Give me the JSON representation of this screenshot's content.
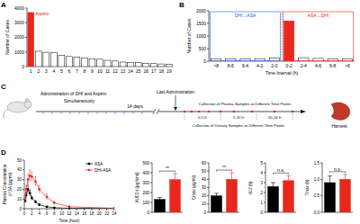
{
  "panel_labels": [
    "A",
    "B",
    "C",
    "D"
  ],
  "chart_data": [
    {
      "type": "bar",
      "ylabel": "Number of Cases",
      "categories": [
        1,
        2,
        3,
        4,
        5,
        6,
        7,
        8,
        9,
        10,
        11,
        12,
        13,
        14,
        15,
        16,
        17,
        18,
        19
      ],
      "values": [
        3700,
        1050,
        980,
        950,
        760,
        690,
        640,
        590,
        540,
        500,
        430,
        380,
        310,
        290,
        270,
        230,
        200,
        180,
        160
      ],
      "colors": [
        "#e8281e",
        "#ffffff",
        "#ffffff",
        "#ffffff",
        "#ffffff",
        "#ffffff",
        "#ffffff",
        "#ffffff",
        "#ffffff",
        "#ffffff",
        "#ffffff",
        "#ffffff",
        "#ffffff",
        "#ffffff",
        "#ffffff",
        "#ffffff",
        "#ffffff",
        "#ffffff",
        "#ffffff"
      ],
      "ylim": [
        0,
        4000
      ],
      "yticks": [
        0,
        1000,
        2000,
        3000,
        4000
      ],
      "annotations": [
        "Aspirin"
      ]
    },
    {
      "type": "bar",
      "ylabel": "Number of Cases",
      "xlabel": "Time Interval (h)",
      "categories": [
        ">8",
        "8-6",
        "6-4",
        "4-2",
        "2-0",
        "0-2",
        "2-4",
        "4-6",
        "6-8",
        ">8"
      ],
      "values": [
        100,
        90,
        90,
        100,
        130,
        1600,
        140,
        110,
        90,
        100
      ],
      "colors": [
        "#ffffff",
        "#ffffff",
        "#ffffff",
        "#ffffff",
        "#ffffff",
        "#e8281e",
        "#ffffff",
        "#ffffff",
        "#ffffff",
        "#ffffff"
      ],
      "ylim": [
        0,
        2000
      ],
      "yticks": [
        0,
        500,
        1000,
        1500,
        2000
      ],
      "annotations": [
        "DHI→ASA",
        "ASA→DHI"
      ]
    },
    {
      "type": "line",
      "ylabel": [
        "Plasma Concentration",
        "of SA (μg/ml)"
      ],
      "xlabel": "Time (hour)",
      "x": [
        0.25,
        0.5,
        1,
        1.5,
        2,
        3,
        4,
        6,
        8,
        12,
        24
      ],
      "series": [
        {
          "name": "ASA",
          "color": "#000000",
          "marker": "square",
          "values": [
            8,
            14,
            20,
            16,
            11,
            7,
            4,
            2,
            1,
            0.5,
            0.2
          ],
          "errors": [
            2,
            3,
            4,
            3,
            2,
            1.5,
            1,
            0.5,
            0.3,
            0.2,
            0.1
          ]
        },
        {
          "name": "DHI-ASA",
          "color": "#e8281e",
          "marker": "circle",
          "values": [
            10,
            20,
            30,
            34,
            33,
            28,
            20,
            12,
            6,
            2,
            0.5
          ],
          "errors": [
            3,
            4,
            6,
            6,
            5,
            5,
            4,
            3,
            2,
            1,
            0.3
          ]
        }
      ],
      "xlim": [
        0,
        24
      ],
      "xticks": [
        0,
        2,
        4,
        6,
        8,
        10,
        12,
        14,
        16,
        18,
        20,
        22,
        24
      ],
      "ylim": [
        0,
        50
      ],
      "yticks": [
        0,
        10,
        20,
        30,
        40,
        50
      ],
      "legend": "upper right"
    },
    {
      "type": "bar",
      "ylabel": "AUC0-t (μg·h/ml)",
      "categories": [
        null,
        null
      ],
      "values": [
        130,
        330
      ],
      "errors": [
        20,
        60
      ],
      "colors": [
        "#000000",
        "#e8281e"
      ],
      "ylim": [
        0,
        500
      ],
      "yticks": [
        0,
        100,
        200,
        300,
        400,
        500
      ],
      "tick_labels": "y",
      "annotations": [
        "**"
      ]
    },
    {
      "type": "bar",
      "ylabel": "Cmax (μg/ml)",
      "categories": [
        null,
        null
      ],
      "values": [
        20,
        40
      ],
      "errors": [
        3,
        8
      ],
      "colors": [
        "#000000",
        "#e8281e"
      ],
      "ylim": [
        0,
        60
      ],
      "yticks": [
        0,
        10,
        20,
        30,
        40,
        50,
        60
      ],
      "tick_labels": "y",
      "annotations": [
        "**"
      ]
    },
    {
      "type": "bar",
      "ylabel": "t1/2 (h)",
      "categories": [
        null,
        null
      ],
      "values": [
        2.6,
        3.2
      ],
      "errors": [
        0.4,
        0.5
      ],
      "colors": [
        "#000000",
        "#e8281e"
      ],
      "ylim": [
        0,
        5
      ],
      "yticks": [
        0,
        1,
        2,
        3,
        4,
        5
      ],
      "tick_labels": "y",
      "annotations": [
        "n.s."
      ]
    },
    {
      "type": "bar",
      "ylabel": "Tmax (h)",
      "categories": [
        null,
        null
      ],
      "values": [
        0.9,
        1.0
      ],
      "errors": [
        0.2,
        0.15
      ],
      "colors": [
        "#000000",
        "#e8281e"
      ],
      "ylim": [
        0,
        1.5
      ],
      "yticks": [
        {
          "value": 0,
          "label": "0.0"
        },
        {
          "value": 0.5,
          "label": "0.5"
        },
        {
          "value": 1,
          "label": "1.0"
        },
        {
          "value": 1.5,
          "label": "1.5"
        }
      ],
      "tick_labels": "y",
      "annotations": [
        "n.s."
      ]
    }
  ],
  "diagram": {
    "administration": "Administration of DHI and Aspirin",
    "simultaneously": "Simultaneously",
    "last_administration": "Last Administration",
    "duration": "14 days",
    "plasma": "Collection of Plasma Samples at Different Time Points",
    "urinary": "Collection of Urinary Samples at Different Time Points",
    "intervals": [
      "0-5 h",
      "5-10 h",
      "10-24 h"
    ],
    "harvest": "Harvest"
  }
}
